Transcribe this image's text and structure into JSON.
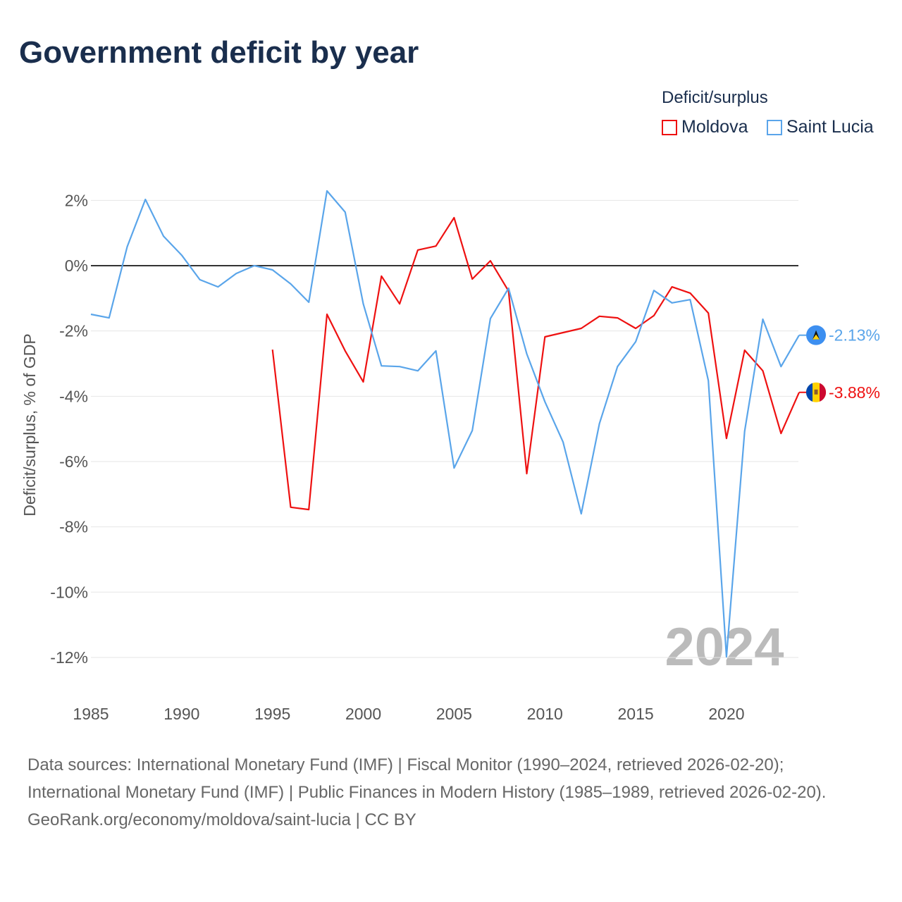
{
  "chart_data": {
    "type": "line",
    "title": "Government deficit by year",
    "ylabel": "Deficit/surplus, % of GDP",
    "xlabel": "",
    "xlim": [
      1985,
      2024
    ],
    "ylim": [
      -13,
      2.6
    ],
    "x_ticks": [
      1985,
      1990,
      1995,
      2000,
      2005,
      2010,
      2015,
      2020
    ],
    "y_ticks": [
      2,
      0,
      -2,
      -4,
      -6,
      -8,
      -10,
      -12
    ],
    "y_tick_labels": [
      "2%",
      "0%",
      "-2%",
      "-4%",
      "-6%",
      "-8%",
      "-10%",
      "-12%"
    ],
    "grid": true,
    "legend_title": "Deficit/surplus",
    "legend_placement": "top-right",
    "year_watermark": "2024",
    "series": [
      {
        "name": "Moldova",
        "color": "#ee1111",
        "end_label": "-3.88%",
        "x": [
          1995,
          1996,
          1997,
          1998,
          1999,
          2000,
          2001,
          2002,
          2003,
          2004,
          2005,
          2006,
          2007,
          2008,
          2009,
          2010,
          2011,
          2012,
          2013,
          2014,
          2015,
          2016,
          2017,
          2018,
          2019,
          2020,
          2021,
          2022,
          2023,
          2024
        ],
        "values": [
          -2.57,
          -7.4,
          -7.47,
          -1.49,
          -2.61,
          -3.56,
          -0.32,
          -1.17,
          0.48,
          0.6,
          1.47,
          -0.41,
          0.15,
          -0.78,
          -6.37,
          -2.18,
          -2.05,
          -1.92,
          -1.55,
          -1.6,
          -1.92,
          -1.53,
          -0.65,
          -0.84,
          -1.45,
          -5.29,
          -2.59,
          -3.22,
          -5.14,
          -3.88
        ]
      },
      {
        "name": "Saint Lucia",
        "color": "#5aa5ea",
        "end_label": "-2.13%",
        "x": [
          1985,
          1986,
          1987,
          1988,
          1989,
          1990,
          1991,
          1992,
          1993,
          1994,
          1995,
          1996,
          1997,
          1998,
          1999,
          2000,
          2001,
          2002,
          2003,
          2004,
          2005,
          2006,
          2007,
          2008,
          2009,
          2010,
          2011,
          2012,
          2013,
          2014,
          2015,
          2016,
          2017,
          2018,
          2019,
          2020,
          2021,
          2022,
          2023,
          2024
        ],
        "values": [
          -1.49,
          -1.6,
          0.58,
          2.03,
          0.9,
          0.32,
          -0.43,
          -0.65,
          -0.24,
          0.0,
          -0.13,
          -0.56,
          -1.12,
          2.29,
          1.64,
          -1.17,
          -3.07,
          -3.09,
          -3.22,
          -2.61,
          -6.2,
          -5.05,
          -1.62,
          -0.69,
          -2.7,
          -4.17,
          -5.4,
          -7.6,
          -4.84,
          -3.09,
          -2.33,
          -0.76,
          -1.14,
          -1.04,
          -3.52,
          -11.98,
          -5.07,
          -1.64,
          -3.09,
          -2.13
        ]
      }
    ]
  },
  "footer": {
    "sources": "Data sources: International Monetary Fund (IMF) | Fiscal Monitor (1990–2024, retrieved 2026-02-20); International Monetary Fund (IMF) | Public Finances in Modern History (1985–1989, retrieved 2026-02-20).",
    "attribution": "GeoRank.org/economy/moldova/saint-lucia | CC BY"
  }
}
